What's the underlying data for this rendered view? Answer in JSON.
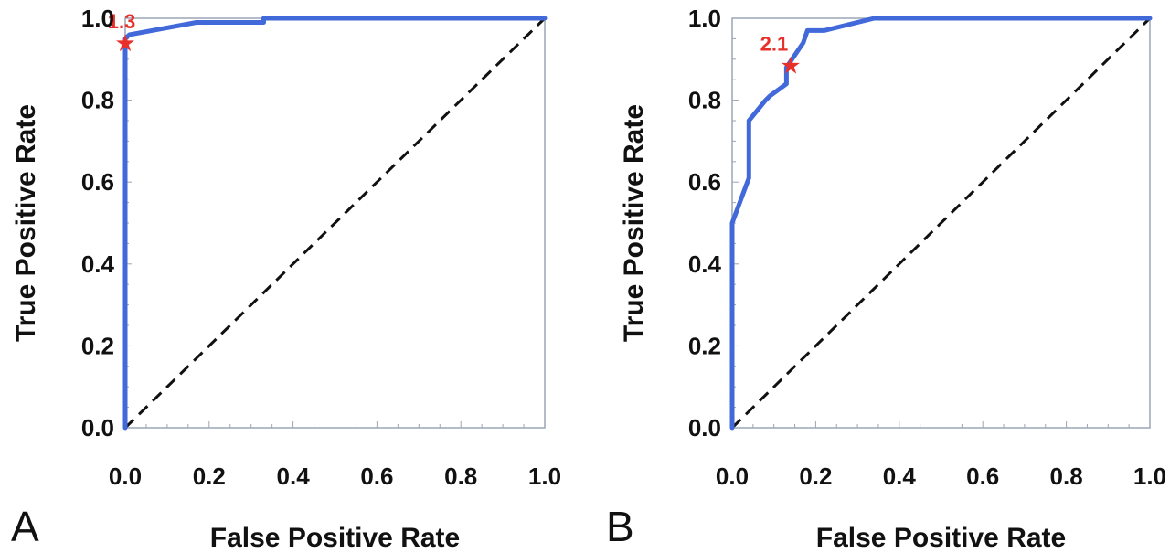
{
  "colors": {
    "roc": "#4169d9",
    "marker": "#e8302a",
    "diagonal": "#111111"
  },
  "chart_data": [
    {
      "type": "line",
      "panel": "A",
      "xlabel": "False Positive Rate",
      "ylabel": "True Positive Rate",
      "xlim": [
        0,
        1
      ],
      "ylim": [
        0,
        1
      ],
      "xticks": [
        "0.0",
        "0.2",
        "0.4",
        "0.6",
        "0.8",
        "1.0"
      ],
      "yticks": [
        "0.0",
        "0.2",
        "0.4",
        "0.6",
        "0.8",
        "1.0"
      ],
      "grid": false,
      "series": [
        {
          "x": [
            0,
            0,
            0.01,
            0.17,
            0.33,
            0.33,
            0.5,
            1.0
          ],
          "y": [
            0,
            0.95,
            0.96,
            0.99,
            0.99,
            1.0,
            1.0,
            1.0
          ]
        }
      ],
      "reference_diagonal": true,
      "annotations": [
        {
          "x": 0.0,
          "y": 0.94,
          "text": "1.3",
          "marker": "star"
        }
      ]
    },
    {
      "type": "line",
      "panel": "B",
      "xlabel": "False Positive Rate",
      "ylabel": "True Positive Rate",
      "xlim": [
        0,
        1
      ],
      "ylim": [
        0,
        1
      ],
      "xticks": [
        "0.0",
        "0.2",
        "0.4",
        "0.6",
        "0.8",
        "1.0"
      ],
      "yticks": [
        "0.0",
        "0.2",
        "0.4",
        "0.6",
        "0.8",
        "1.0"
      ],
      "grid": false,
      "series": [
        {
          "x": [
            0,
            0,
            0.04,
            0.04,
            0.08,
            0.09,
            0.13,
            0.13,
            0.17,
            0.18,
            0.22,
            0.34,
            1.0
          ],
          "y": [
            0,
            0.5,
            0.61,
            0.75,
            0.8,
            0.81,
            0.84,
            0.88,
            0.94,
            0.97,
            0.97,
            1.0,
            1.0
          ]
        }
      ],
      "reference_diagonal": true,
      "annotations": [
        {
          "x": 0.14,
          "y": 0.885,
          "text": "2.1",
          "marker": "star"
        }
      ]
    }
  ]
}
